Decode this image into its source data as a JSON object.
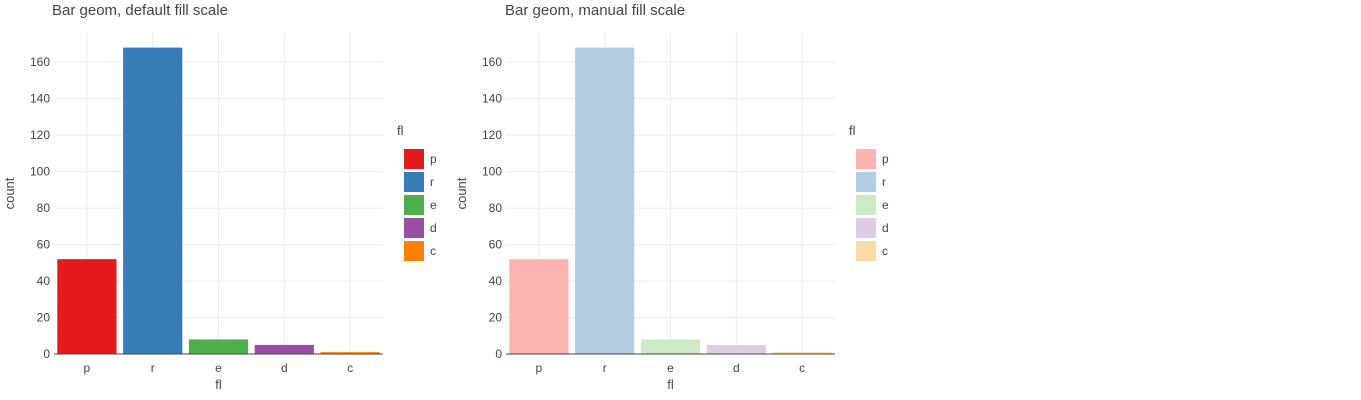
{
  "chart_data": [
    {
      "type": "bar",
      "title": "Bar geom, default fill scale",
      "xlabel": "fl",
      "ylabel": "count",
      "categories": [
        "p",
        "r",
        "e",
        "d",
        "c"
      ],
      "values": [
        52,
        168,
        8,
        5,
        1
      ],
      "colors": [
        "#e41a1c",
        "#377eb8",
        "#4daf4a",
        "#984ea3",
        "#ff7f00"
      ],
      "ylim": [
        0,
        176
      ],
      "yticks": [
        0,
        20,
        40,
        60,
        80,
        100,
        120,
        140,
        160
      ],
      "grid": true,
      "legend": {
        "title": "fl",
        "placement": "right",
        "entries": [
          "p",
          "r",
          "e",
          "d",
          "c"
        ]
      }
    },
    {
      "type": "bar",
      "title": "Bar geom, manual fill scale",
      "xlabel": "fl",
      "ylabel": "count",
      "categories": [
        "p",
        "r",
        "e",
        "d",
        "c"
      ],
      "values": [
        52,
        168,
        8,
        5,
        1
      ],
      "colors": [
        "#fbb4ae",
        "#b3cde3",
        "#ccebc5",
        "#decbe4",
        "#fed9a6"
      ],
      "ylim": [
        0,
        176
      ],
      "yticks": [
        0,
        20,
        40,
        60,
        80,
        100,
        120,
        140,
        160
      ],
      "grid": true,
      "legend": {
        "title": "fl",
        "placement": "right",
        "entries": [
          "p",
          "r",
          "e",
          "d",
          "c"
        ]
      }
    }
  ]
}
